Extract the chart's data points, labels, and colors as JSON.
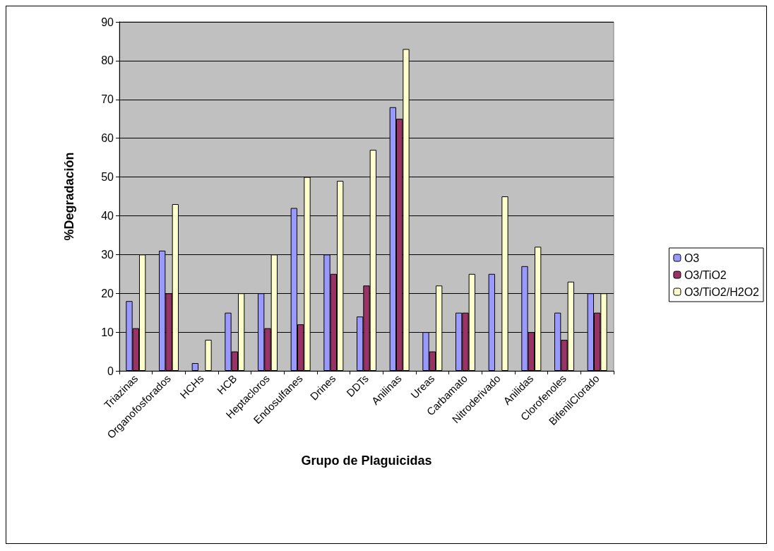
{
  "chart_data": {
    "type": "bar",
    "xlabel": "Grupo de Plaguicidas",
    "ylabel": "%Degradación",
    "categories": [
      "Triazinas",
      "Organofosforados",
      "HCHs",
      "HCB",
      "Heptacloros",
      "Endosulfanes",
      "Drines",
      "DDTs",
      "Anilinas",
      "Ureas",
      "Carbamato",
      "Nitroderivado",
      "Anilidas",
      "Clorofenoles",
      "BifenilClorado"
    ],
    "series": [
      {
        "name": "O3",
        "color": "#9999ff",
        "values": [
          18,
          31,
          2,
          15,
          20,
          42,
          30,
          14,
          68,
          10,
          15,
          25,
          27,
          15,
          20
        ]
      },
      {
        "name": "O3/TiO2",
        "color": "#993366",
        "values": [
          11,
          20,
          null,
          5,
          11,
          12,
          25,
          22,
          65,
          5,
          15,
          null,
          10,
          8,
          15
        ]
      },
      {
        "name": "O3/TiO2/H2O2",
        "color": "#ffffcc",
        "values": [
          30,
          43,
          8,
          20,
          30,
          50,
          49,
          57,
          83,
          22,
          25,
          45,
          32,
          23,
          20
        ]
      }
    ],
    "ylim": [
      0,
      90
    ],
    "yticks": [
      0,
      10,
      20,
      30,
      40,
      50,
      60,
      70,
      80,
      90
    ],
    "grid": "y",
    "legend": "right"
  }
}
